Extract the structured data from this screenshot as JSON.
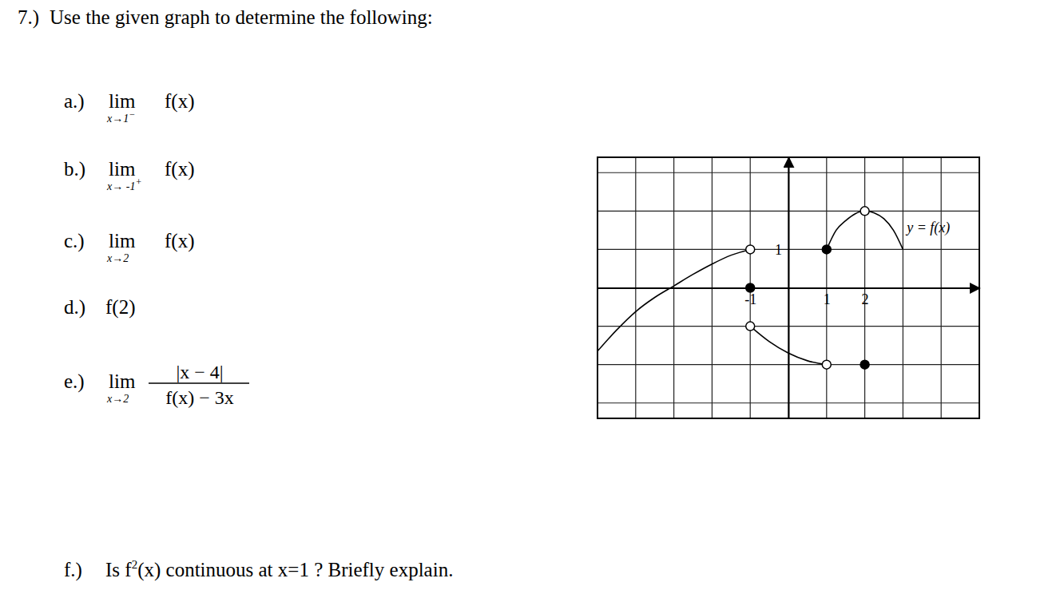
{
  "problem": {
    "number": "7.)",
    "prompt": "Use the given graph to determine the following:",
    "parts": [
      {
        "label": "a.)",
        "lim": "lim",
        "sub": "x→1",
        "sup": "−",
        "expr": "f(x)"
      },
      {
        "label": "b.)",
        "lim": "lim",
        "sub": "x→ -1",
        "sup": "+",
        "expr": "f(x)"
      },
      {
        "label": "c.)",
        "lim": "lim",
        "sub": "x→2",
        "expr": "f(x)"
      },
      {
        "label": "d.)",
        "expr": "f(2)"
      },
      {
        "label": "e.)",
        "lim": "lim",
        "sub": "x→2",
        "numerator": "|x − 4|",
        "denominator": "f(x) − 3x"
      },
      {
        "label": "f.)",
        "pre": "Is f",
        "sup": "2",
        "post": "(x) continuous at x=1 ? Briefly explain."
      }
    ]
  },
  "chart_data": {
    "type": "line",
    "xlim": [
      -5,
      5
    ],
    "ylim": [
      -3.4,
      3.4
    ],
    "xticks": [
      -1,
      1,
      2
    ],
    "yticks": [
      1
    ],
    "grid": true,
    "grid_lines": {
      "x": [
        -4,
        -3,
        -2,
        -1,
        0,
        1,
        2,
        3,
        4
      ],
      "y": [
        -3,
        -2,
        -1,
        0,
        1,
        2,
        3
      ]
    },
    "annotation": "y = f(x)",
    "series": [
      {
        "type": "line",
        "color": "#000000",
        "line_style": "solid",
        "x": [
          -5,
          -4.5,
          -4,
          -3.5,
          -3,
          -2.5,
          -2,
          -1.5,
          -1
        ],
        "values": [
          -1.65,
          -1.1,
          -0.62,
          -0.25,
          0.05,
          0.35,
          0.62,
          0.85,
          1.0
        ]
      },
      {
        "type": "line",
        "color": "#000000",
        "line_style": "solid",
        "x": [
          -1,
          -0.5,
          0,
          0.5,
          1
        ],
        "values": [
          -1,
          -1.4,
          -1.7,
          -1.9,
          -2
        ]
      },
      {
        "type": "line",
        "color": "#000000",
        "line_style": "solid",
        "x": [
          1,
          1.25,
          1.5,
          1.75,
          2,
          2.25,
          2.5,
          2.75,
          3
        ],
        "values": [
          1,
          1.5,
          1.75,
          1.93,
          2,
          1.95,
          1.8,
          1.5,
          1
        ]
      },
      {
        "type": "scatter",
        "color": "#000000",
        "marker": "open",
        "x": [
          -1,
          -1,
          1,
          2
        ],
        "values": [
          1,
          -1,
          -2,
          2
        ]
      },
      {
        "type": "scatter",
        "color": "#000000",
        "marker": "filled",
        "x": [
          -1,
          1,
          2
        ],
        "values": [
          0,
          1,
          -2
        ]
      }
    ]
  }
}
